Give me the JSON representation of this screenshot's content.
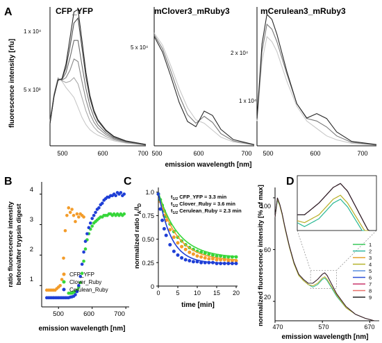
{
  "figure": {
    "panel_labels": [
      "A",
      "B",
      "C",
      "D"
    ],
    "panel_a": {
      "ylabel": "fluorescence intensity [rfu]",
      "xlabel": "emission wavelength [nm]",
      "subplots": [
        {
          "title": "CFP_YFP",
          "yticks": [
            "1 x 10⁴",
            "5 x 10³"
          ],
          "xticks": [
            "500",
            "600",
            "700"
          ]
        },
        {
          "title": "mClover3_mRuby3",
          "yticks": [
            "5 x 10⁴"
          ],
          "xticks": [
            "500",
            "600",
            "700"
          ]
        },
        {
          "title": "mCerulean3_mRuby3",
          "yticks": [
            "2 x 10⁴",
            "1 x 10⁴"
          ],
          "xticks": [
            "500",
            "600",
            "700"
          ]
        }
      ]
    },
    "panel_b": {
      "ylabel_1": "ratio fluorescence intensity",
      "ylabel_2": "before/after trypsin digest",
      "xlabel": "emission wavelength [nm]",
      "yticks": [
        "1",
        "2",
        "3",
        "4"
      ],
      "xticks": [
        "500",
        "600",
        "700"
      ]
    },
    "panel_c": {
      "ylabel": "normalized ratio I",
      "ylabel_sub": "A",
      "ylabel_mid": "/I",
      "ylabel_sub2": "D",
      "xlabel": "time [min]",
      "yticks": [
        "0",
        "0.25",
        "0.50",
        "0.75",
        "1.0"
      ],
      "xticks": [
        "0",
        "5",
        "10",
        "15",
        "20"
      ],
      "annotations": [
        {
          "pre": "t",
          "sub": "1/2",
          "post": " CFP_YFP = 3.3 min"
        },
        {
          "pre": "t",
          "sub": "1/2",
          "post": " Clover_Ruby = 3.6 min"
        },
        {
          "pre": "t",
          "sub": "1/2",
          "post": " Cerulean_Ruby = 2.3 min"
        }
      ]
    },
    "panel_d": {
      "ylabel": "normalized fluorescence intensity [% of max]",
      "xlabel": "emission wavelength [nm]",
      "yticks": [
        "20",
        "60",
        "100"
      ],
      "xticks": [
        "470",
        "570",
        "670"
      ]
    }
  },
  "chart_data": [
    {
      "type": "line",
      "panel": "A",
      "title": "CFP_YFP",
      "xlabel": "emission wavelength [nm]",
      "ylabel": "fluorescence intensity [rfu]",
      "xlim": [
        460,
        700
      ],
      "ylim": [
        0,
        11200
      ],
      "x": [
        460,
        470,
        480,
        490,
        500,
        510,
        520,
        530,
        540,
        550,
        560,
        570,
        580,
        600,
        620,
        650,
        700
      ],
      "series": [
        {
          "values": [
            2000,
            4200,
            5500,
            5200,
            4700,
            4300,
            3900,
            3100,
            2300,
            1700,
            1300,
            1050,
            850,
            600,
            400,
            220,
            60
          ]
        },
        {
          "values": [
            1950,
            4150,
            5450,
            5250,
            5100,
            5200,
            5500,
            5000,
            3900,
            2800,
            2000,
            1500,
            1150,
            750,
            480,
            260,
            70
          ]
        },
        {
          "values": [
            1900,
            4100,
            5400,
            5300,
            5500,
            6100,
            7000,
            6800,
            5200,
            3700,
            2600,
            1900,
            1450,
            900,
            560,
            300,
            80
          ]
        },
        {
          "values": [
            1850,
            4050,
            5350,
            5350,
            5900,
            7100,
            8500,
            8500,
            6500,
            4600,
            3200,
            2300,
            1700,
            1050,
            640,
            340,
            90
          ]
        },
        {
          "values": [
            1800,
            4000,
            5300,
            5400,
            6300,
            8000,
            9900,
            10300,
            7900,
            5500,
            3800,
            2700,
            2000,
            1200,
            720,
            380,
            100
          ]
        },
        {
          "values": [
            1780,
            3980,
            5280,
            5420,
            6600,
            8700,
            10800,
            11000,
            8500,
            5900,
            4050,
            2850,
            2100,
            1270,
            760,
            400,
            105
          ]
        }
      ]
    },
    {
      "type": "line",
      "panel": "A",
      "title": "mClover3_mRuby3",
      "xlim": [
        460,
        700
      ],
      "ylim": [
        0,
        80000
      ],
      "x": [
        460,
        480,
        500,
        520,
        540,
        560,
        580,
        600,
        620,
        650,
        700
      ],
      "series": [
        {
          "values": [
            65000,
            58000,
            46000,
            33000,
            22000,
            15000,
            13000,
            9000,
            5000,
            2200,
            500
          ]
        },
        {
          "values": [
            64000,
            56000,
            43000,
            29000,
            18000,
            13000,
            17000,
            13500,
            7000,
            2800,
            600
          ]
        },
        {
          "values": [
            63000,
            54000,
            40000,
            25000,
            14000,
            11000,
            20000,
            17500,
            9500,
            3600,
            700
          ]
        }
      ]
    },
    {
      "type": "line",
      "panel": "A",
      "title": "mCerulean3_mRuby3",
      "xlim": [
        460,
        700
      ],
      "ylim": [
        0,
        28000
      ],
      "x": [
        460,
        470,
        480,
        490,
        500,
        520,
        540,
        560,
        580,
        600,
        620,
        650,
        700
      ],
      "series": [
        {
          "values": [
            5000,
            17000,
            22000,
            21000,
            19000,
            13000,
            8000,
            5000,
            3500,
            2000,
            1200,
            500,
            150
          ]
        },
        {
          "values": [
            5200,
            19000,
            24500,
            23500,
            21000,
            14500,
            8500,
            5500,
            5000,
            3800,
            2000,
            700,
            200
          ]
        },
        {
          "values": [
            5500,
            20500,
            26500,
            25500,
            22500,
            15000,
            8500,
            5600,
            6500,
            5500,
            2800,
            900,
            250
          ]
        }
      ]
    },
    {
      "type": "scatter",
      "panel": "B",
      "xlabel": "emission wavelength [nm]",
      "ylabel": "ratio fluorescence intensity before/after trypsin digest",
      "xlim": [
        450,
        710
      ],
      "ylim": [
        0.3,
        4.4
      ],
      "legend": "bottom-left",
      "series": [
        {
          "name": "CFP_YFP",
          "color": "#f39c2a",
          "x": [
            465,
            470,
            475,
            480,
            485,
            490,
            495,
            500,
            505,
            510,
            515,
            520,
            525,
            530,
            535,
            540,
            545,
            550,
            555,
            560,
            565,
            570,
            575
          ],
          "y": [
            0.85,
            0.85,
            0.85,
            0.85,
            0.85,
            0.85,
            0.9,
            0.95,
            1.0,
            1.2,
            1.9,
            2.8,
            3.3,
            3.55,
            3.4,
            3.5,
            3.3,
            3.1,
            3.35,
            3.25,
            3.35,
            3.3,
            3.25
          ]
        },
        {
          "name": "Clover_Ruby",
          "color": "#37d63a",
          "x": [
            530,
            535,
            540,
            545,
            550,
            555,
            560,
            565,
            570,
            575,
            580,
            585,
            590,
            595,
            600,
            605,
            610,
            615,
            620,
            625,
            630,
            635,
            640,
            645,
            650,
            655,
            660,
            665,
            670,
            675,
            680,
            685,
            690,
            695
          ],
          "y": [
            0.75,
            0.75,
            0.75,
            0.78,
            0.8,
            0.85,
            0.95,
            1.1,
            1.4,
            1.8,
            2.2,
            2.5,
            2.7,
            2.85,
            2.95,
            3.05,
            3.1,
            3.15,
            3.2,
            3.25,
            3.25,
            3.3,
            3.3,
            3.3,
            3.35,
            3.35,
            3.3,
            3.35,
            3.3,
            3.35,
            3.3,
            3.35,
            3.3,
            3.35
          ]
        },
        {
          "name": "Cerulean_Ruby",
          "color": "#1f3fd6",
          "x": [
            465,
            470,
            475,
            480,
            485,
            490,
            495,
            500,
            505,
            510,
            515,
            520,
            525,
            530,
            535,
            540,
            545,
            550,
            555,
            560,
            565,
            570,
            575,
            580,
            585,
            590,
            595,
            600,
            605,
            610,
            615,
            620,
            625,
            630,
            635,
            640,
            645,
            650,
            655,
            660,
            665,
            670,
            675,
            680,
            685,
            690,
            695
          ],
          "y": [
            0.6,
            0.6,
            0.6,
            0.6,
            0.6,
            0.6,
            0.6,
            0.6,
            0.6,
            0.6,
            0.6,
            0.6,
            0.6,
            0.6,
            0.62,
            0.63,
            0.65,
            0.7,
            0.8,
            1.0,
            1.3,
            1.7,
            2.1,
            2.45,
            2.7,
            2.9,
            3.05,
            3.2,
            3.3,
            3.4,
            3.5,
            3.55,
            3.65,
            3.7,
            3.8,
            3.85,
            3.9,
            3.9,
            3.95,
            3.95,
            4.0,
            3.95,
            4.05,
            4.0,
            4.05,
            3.95,
            4.0
          ]
        }
      ]
    },
    {
      "type": "scatter",
      "panel": "C",
      "xlabel": "time [min]",
      "ylabel": "normalized ratio IA/ID",
      "xlim": [
        0,
        20
      ],
      "ylim": [
        0,
        1.05
      ],
      "series": [
        {
          "name": "CFP_YFP",
          "color": "#f39c2a",
          "plateau": 0.27,
          "t_half": 3.3,
          "x": [
            0,
            0.5,
            1,
            1.5,
            2,
            3,
            4,
            5,
            6,
            7,
            8,
            9,
            10,
            11,
            12,
            13,
            14,
            15,
            16,
            17,
            18,
            19,
            20
          ],
          "y": [
            0.98,
            0.9,
            0.82,
            0.75,
            0.7,
            0.6,
            0.52,
            0.46,
            0.42,
            0.39,
            0.36,
            0.34,
            0.32,
            0.31,
            0.3,
            0.29,
            0.29,
            0.28,
            0.28,
            0.28,
            0.27,
            0.27,
            0.27
          ]
        },
        {
          "name": "Clover_Ruby",
          "color": "#37d63a",
          "plateau": 0.3,
          "t_half": 3.6,
          "x": [
            0,
            0.5,
            1,
            1.5,
            2,
            3,
            4,
            5,
            6,
            7,
            8,
            9,
            10,
            11,
            12,
            13,
            14,
            15,
            16,
            17,
            18,
            19,
            20
          ],
          "y": [
            0.98,
            0.92,
            0.86,
            0.8,
            0.74,
            0.66,
            0.58,
            0.52,
            0.48,
            0.44,
            0.41,
            0.39,
            0.37,
            0.36,
            0.35,
            0.34,
            0.33,
            0.32,
            0.32,
            0.31,
            0.31,
            0.31,
            0.31
          ]
        },
        {
          "name": "Cerulean_Ruby",
          "color": "#1f3fd6",
          "plateau": 0.24,
          "t_half": 2.3,
          "x": [
            0,
            0.5,
            1,
            1.5,
            2,
            3,
            4,
            5,
            6,
            7,
            8,
            9,
            10,
            11,
            12,
            13,
            14,
            15,
            16,
            17,
            18,
            19,
            20
          ],
          "y": [
            0.98,
            0.82,
            0.7,
            0.61,
            0.54,
            0.44,
            0.37,
            0.33,
            0.3,
            0.28,
            0.27,
            0.26,
            0.26,
            0.25,
            0.25,
            0.25,
            0.25,
            0.24,
            0.24,
            0.24,
            0.24,
            0.24,
            0.24
          ]
        }
      ]
    },
    {
      "type": "line",
      "panel": "D",
      "xlabel": "emission wavelength [nm]",
      "ylabel": "normalized fluorescence intensity [% of max]",
      "xlim": [
        470,
        690
      ],
      "ylim": [
        5,
        108
      ],
      "legend": "right",
      "x": [
        470,
        475,
        480,
        485,
        490,
        495,
        500,
        510,
        520,
        530,
        540,
        550,
        560,
        570,
        575,
        580,
        590,
        600,
        620,
        640,
        660,
        680,
        690
      ],
      "series": [
        {
          "name": "1",
          "color": "#39c95a",
          "values": [
            85,
            98,
            94,
            87,
            78,
            70,
            62,
            49,
            40,
            36,
            33,
            31,
            33,
            37,
            38,
            36,
            30,
            24,
            15,
            10,
            7,
            5,
            5
          ]
        },
        {
          "name": "2",
          "color": "#2eb8a0",
          "values": [
            85,
            98,
            94,
            87,
            78,
            70,
            62,
            49,
            40,
            36,
            33,
            31,
            33,
            37,
            38,
            36,
            30,
            24,
            15,
            10,
            7,
            5,
            5
          ]
        },
        {
          "name": "3",
          "color": "#e3a02c",
          "values": [
            85,
            99,
            94,
            87,
            78,
            70,
            62,
            49,
            40,
            36,
            33,
            32,
            34,
            38,
            39,
            37,
            31,
            25,
            15,
            10,
            7,
            5,
            5
          ]
        },
        {
          "name": "4",
          "color": "#b5b32c",
          "values": [
            85,
            99,
            94,
            87,
            78,
            70,
            62,
            49,
            40,
            36,
            33,
            32,
            34,
            38,
            39,
            37,
            31,
            25,
            15,
            10,
            7,
            5,
            5
          ]
        },
        {
          "name": "5",
          "color": "#5a8de0",
          "values": [
            85,
            100,
            95,
            88,
            79,
            71,
            63,
            50,
            41,
            37,
            34,
            34,
            37,
            41,
            42,
            40,
            33,
            26,
            16,
            10,
            7,
            5,
            5
          ]
        },
        {
          "name": "6",
          "color": "#2c4fd6",
          "values": [
            85,
            100,
            95,
            88,
            79,
            71,
            63,
            50,
            41,
            37,
            34,
            34,
            37,
            41,
            42,
            40,
            33,
            26,
            16,
            10,
            7,
            5,
            5
          ]
        },
        {
          "name": "7",
          "color": "#c8356a",
          "values": [
            85,
            100,
            95,
            88,
            79,
            71,
            63,
            50,
            41,
            37,
            34,
            34,
            37,
            41,
            42,
            40,
            33,
            26,
            16,
            10,
            7,
            5,
            5
          ]
        },
        {
          "name": "8",
          "color": "#e8706a",
          "values": [
            85,
            100,
            95,
            88,
            79,
            71,
            63,
            50,
            41,
            37,
            34,
            34,
            37,
            41,
            42,
            40,
            33,
            26,
            16,
            10,
            7,
            5,
            5
          ]
        },
        {
          "name": "9",
          "color": "#222222",
          "values": [
            85,
            100,
            95,
            88,
            79,
            71,
            63,
            50,
            41,
            37,
            34,
            34,
            37,
            41,
            42,
            40,
            33,
            26,
            16,
            10,
            7,
            5,
            5
          ]
        }
      ]
    }
  ]
}
